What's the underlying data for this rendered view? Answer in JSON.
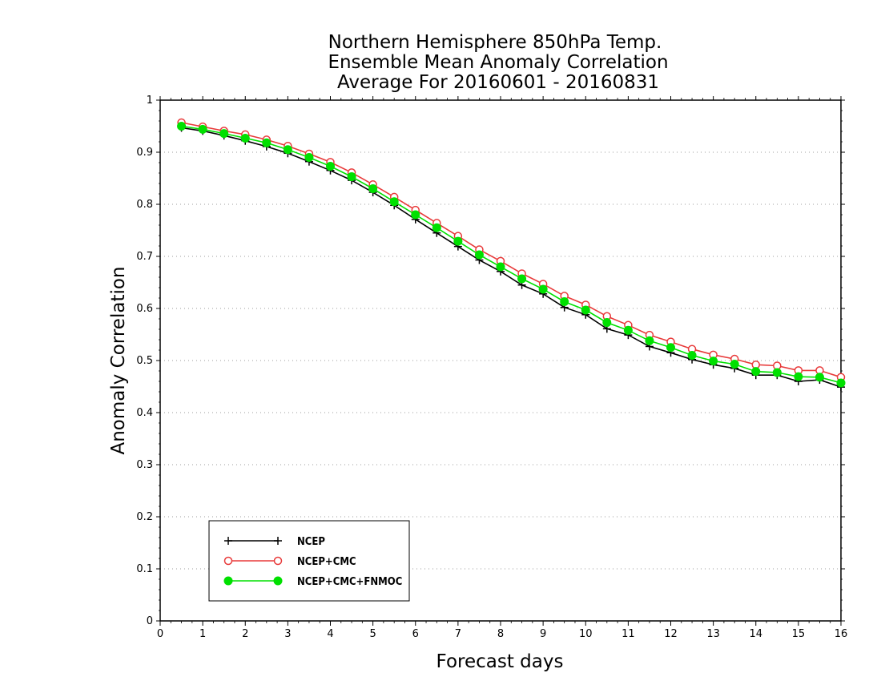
{
  "chart_data": {
    "type": "line",
    "title": [
      "Northern Hemisphere 850hPa Temp.",
      "Ensemble Mean Anomaly Correlation",
      "Average For 20160601 - 20160831"
    ],
    "xlabel": "Forecast days",
    "ylabel": "Anomaly Correlation",
    "xlim": [
      0,
      16
    ],
    "ylim": [
      0,
      1
    ],
    "xticks": [
      "0",
      "1",
      "2",
      "3",
      "4",
      "5",
      "6",
      "7",
      "8",
      "9",
      "10",
      "11",
      "12",
      "13",
      "14",
      "15",
      "16"
    ],
    "yticks": [
      "0",
      "0.1",
      "0.2",
      "0.3",
      "0.4",
      "0.5",
      "0.6",
      "0.7",
      "0.8",
      "0.9",
      "1"
    ],
    "grid": "horizontal dotted",
    "legend_position": "bottom-left",
    "x": [
      0.5,
      1,
      1.5,
      2,
      2.5,
      3,
      3.5,
      4,
      4.5,
      5,
      5.5,
      6,
      6.5,
      7,
      7.5,
      8,
      8.5,
      9,
      9.5,
      10,
      10.5,
      11,
      11.5,
      12,
      12.5,
      13,
      13.5,
      14,
      14.5,
      15,
      15.5,
      16
    ],
    "series": [
      {
        "name": "NCEP",
        "color": "#000000",
        "marker": "plus",
        "values": [
          0.947,
          0.941,
          0.932,
          0.922,
          0.911,
          0.898,
          0.882,
          0.865,
          0.846,
          0.823,
          0.798,
          0.771,
          0.745,
          0.719,
          0.693,
          0.671,
          0.645,
          0.628,
          0.602,
          0.588,
          0.561,
          0.549,
          0.527,
          0.515,
          0.502,
          0.492,
          0.485,
          0.472,
          0.472,
          0.46,
          0.463,
          0.449
        ]
      },
      {
        "name": "NCEP+CMC",
        "color": "#e83a3a",
        "marker": "open-circle",
        "values": [
          0.957,
          0.949,
          0.941,
          0.934,
          0.924,
          0.912,
          0.897,
          0.881,
          0.861,
          0.838,
          0.814,
          0.789,
          0.764,
          0.739,
          0.713,
          0.691,
          0.667,
          0.647,
          0.624,
          0.607,
          0.585,
          0.568,
          0.549,
          0.536,
          0.522,
          0.511,
          0.503,
          0.492,
          0.49,
          0.481,
          0.481,
          0.468
        ]
      },
      {
        "name": "NCEP+CMC+FNMOC",
        "color": "#00e000",
        "marker": "filled-circle",
        "values": [
          0.95,
          0.944,
          0.936,
          0.927,
          0.918,
          0.905,
          0.89,
          0.873,
          0.853,
          0.83,
          0.805,
          0.78,
          0.755,
          0.729,
          0.703,
          0.68,
          0.657,
          0.637,
          0.613,
          0.597,
          0.573,
          0.558,
          0.538,
          0.525,
          0.51,
          0.499,
          0.493,
          0.479,
          0.477,
          0.469,
          0.468,
          0.457
        ]
      }
    ]
  }
}
